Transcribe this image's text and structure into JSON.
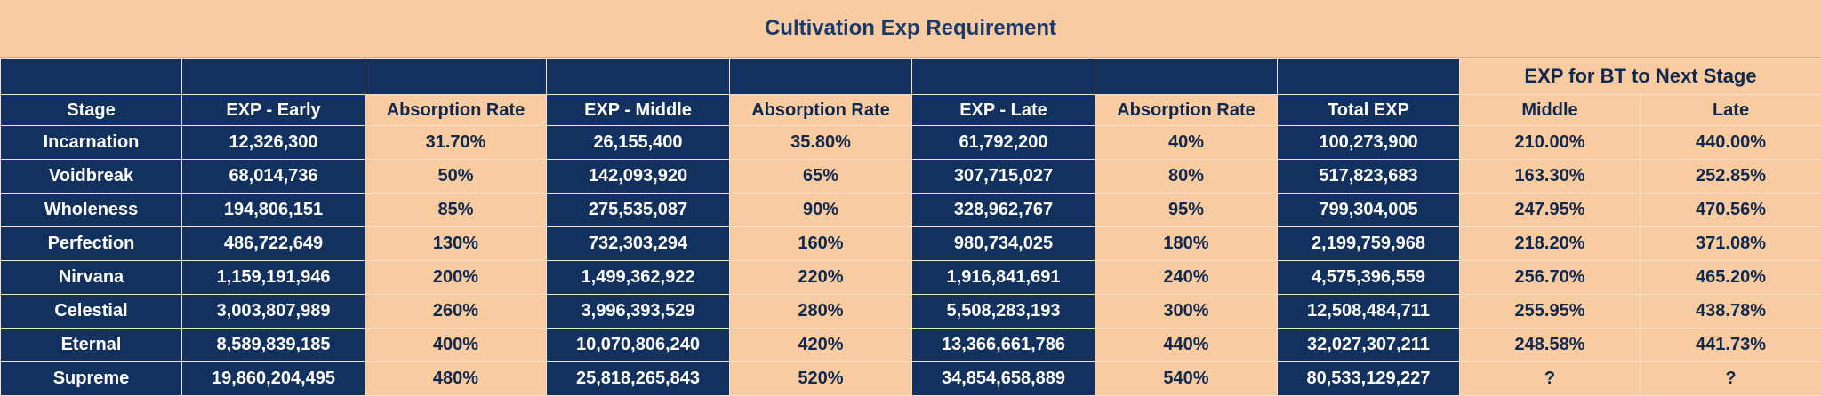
{
  "title": "Cultivation Exp Requirement",
  "group_header": "EXP for BT to Next Stage",
  "columns": [
    "Stage",
    "EXP - Early",
    "Absorption Rate",
    "EXP - Middle",
    "Absorption Rate",
    "EXP - Late",
    "Absorption Rate",
    "Total EXP",
    "Middle",
    "Late"
  ],
  "rows": [
    [
      "Incarnation",
      "12,326,300",
      "31.70%",
      "26,155,400",
      "35.80%",
      "61,792,200",
      "40%",
      "100,273,900",
      "210.00%",
      "440.00%"
    ],
    [
      "Voidbreak",
      "68,014,736",
      "50%",
      "142,093,920",
      "65%",
      "307,715,027",
      "80%",
      "517,823,683",
      "163.30%",
      "252.85%"
    ],
    [
      "Wholeness",
      "194,806,151",
      "85%",
      "275,535,087",
      "90%",
      "328,962,767",
      "95%",
      "799,304,005",
      "247.95%",
      "470.56%"
    ],
    [
      "Perfection",
      "486,722,649",
      "130%",
      "732,303,294",
      "160%",
      "980,734,025",
      "180%",
      "2,199,759,968",
      "218.20%",
      "371.08%"
    ],
    [
      "Nirvana",
      "1,159,191,946",
      "200%",
      "1,499,362,922",
      "220%",
      "1,916,841,691",
      "240%",
      "4,575,396,559",
      "256.70%",
      "465.20%"
    ],
    [
      "Celestial",
      "3,003,807,989",
      "260%",
      "3,996,393,529",
      "280%",
      "5,508,283,193",
      "300%",
      "12,508,484,711",
      "255.95%",
      "438.78%"
    ],
    [
      "Eternal",
      "8,589,839,185",
      "400%",
      "10,070,806,240",
      "420%",
      "13,366,661,786",
      "440%",
      "32,027,307,211",
      "248.58%",
      "441.73%"
    ],
    [
      "Supreme",
      "19,860,204,495",
      "480%",
      "25,818,265,843",
      "520%",
      "34,854,658,889",
      "540%",
      "80,533,129,227",
      "?",
      "?"
    ]
  ]
}
